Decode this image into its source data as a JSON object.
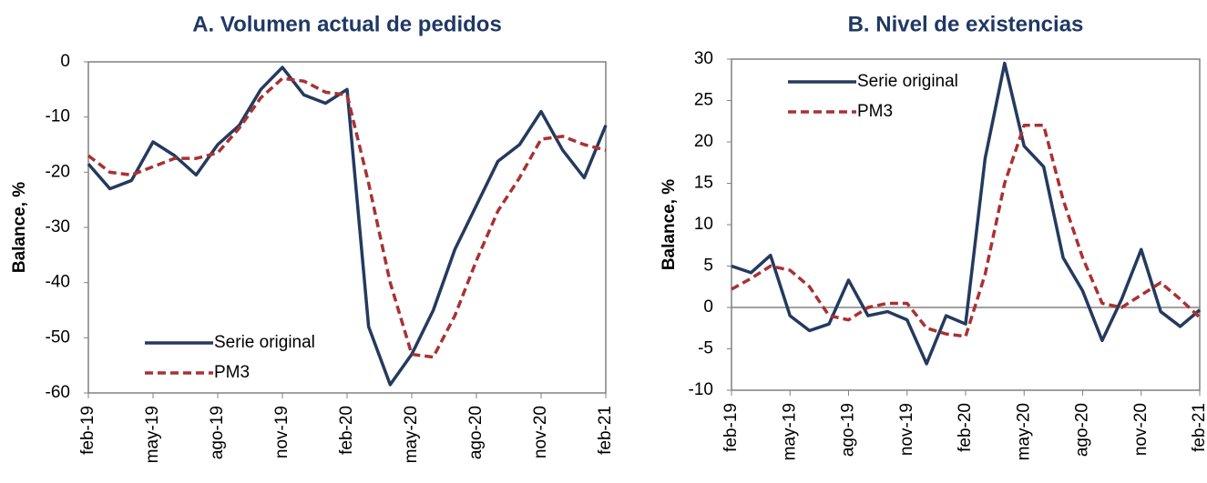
{
  "chart_data": [
    {
      "type": "line",
      "title": "A.  Volumen actual de pedidos",
      "y_label": "Balance, %",
      "categories": [
        "feb-19",
        null,
        null,
        "may-19",
        null,
        null,
        "ago-19",
        null,
        null,
        "nov-19",
        null,
        null,
        "feb-20",
        null,
        null,
        "may-20",
        null,
        null,
        "ago-20",
        null,
        null,
        "nov-20",
        null,
        null,
        "feb-21"
      ],
      "series": [
        {
          "name": "Serie original",
          "color": "#243a5e",
          "values": [
            -18.5,
            -23,
            -21.5,
            -14.5,
            -17,
            -20.5,
            -15,
            -11.5,
            -5,
            -1,
            -6,
            -7.5,
            -5,
            -48,
            -58.5,
            -53,
            -45,
            -34,
            -26,
            -18,
            -15,
            -9,
            -16,
            -21,
            -11.5
          ]
        },
        {
          "name": "PM3",
          "color": "#a83232",
          "dashed": true,
          "values": [
            -17,
            -20,
            -20.5,
            -19,
            -17.5,
            -17.5,
            -16.5,
            -12,
            -6.5,
            -3,
            -3.5,
            -5.5,
            -6,
            -22,
            -40,
            -53,
            -53.5,
            -46,
            -36,
            -27,
            -21,
            -14,
            -13.5,
            -15,
            -16
          ]
        }
      ],
      "ylim": [
        -60,
        0
      ],
      "yticks": [
        0,
        -10,
        -20,
        -30,
        -40,
        -50,
        -60
      ],
      "legend": "lower left",
      "zero_line": false
    },
    {
      "type": "line",
      "title": "B.  Nivel de existencias",
      "y_label": "Balance, %",
      "categories": [
        "feb-19",
        null,
        null,
        "may-19",
        null,
        null,
        "ago-19",
        null,
        null,
        "nov-19",
        null,
        null,
        "feb-20",
        null,
        null,
        "may-20",
        null,
        null,
        "ago-20",
        null,
        null,
        "nov-20",
        null,
        null,
        "feb-21"
      ],
      "series": [
        {
          "name": "Serie original",
          "color": "#243a5e",
          "values": [
            5,
            4.2,
            6.3,
            -1,
            -2.8,
            -2,
            3.3,
            -1,
            -0.5,
            -1.5,
            -6.8,
            -1,
            -2,
            18,
            29.5,
            19.5,
            17,
            6,
            2,
            -4,
            1,
            7,
            -0.5,
            -2.3,
            -0.3
          ]
        },
        {
          "name": "PM3",
          "color": "#a83232",
          "dashed": true,
          "values": [
            2.2,
            3.5,
            5,
            4.5,
            2.5,
            -1,
            -1.5,
            0,
            0.5,
            0.5,
            -2.5,
            -3.2,
            -3.5,
            4,
            15,
            22,
            22,
            13,
            6,
            0.5,
            0,
            1.5,
            3,
            1,
            -1.2
          ]
        }
      ],
      "ylim": [
        -10,
        30
      ],
      "yticks": [
        30,
        25,
        20,
        15,
        10,
        5,
        0,
        -5,
        -10
      ],
      "legend": "upper left",
      "zero_line": true
    }
  ]
}
